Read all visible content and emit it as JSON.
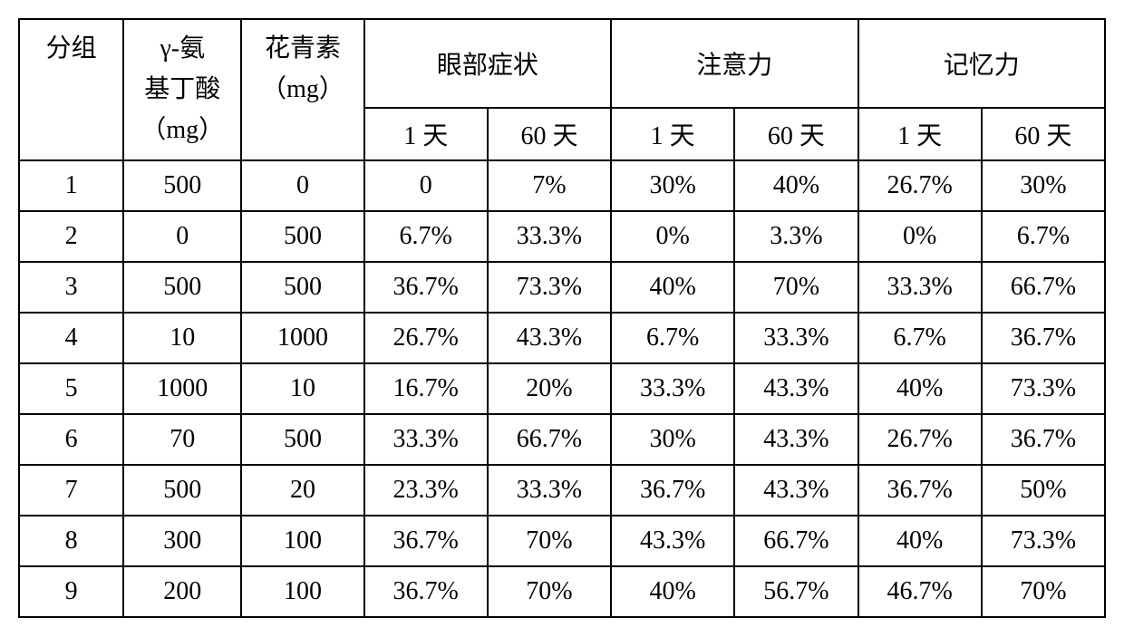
{
  "table": {
    "type": "table",
    "background_color": "#ffffff",
    "border_color": "#000000",
    "text_color": "#000000",
    "font_size": 28,
    "font_family": "SimSun",
    "headers": {
      "group": "分组",
      "gaba_line1": "γ-氨",
      "gaba_line2": "基丁酸",
      "gaba_line3": "（mg）",
      "anthocyanin_line1": "花青素",
      "anthocyanin_line2": "（mg）",
      "eye_symptoms": "眼部症状",
      "attention": "注意力",
      "memory": "记忆力",
      "day1": "1 天",
      "day60": "60 天"
    },
    "columns": [
      "分组",
      "γ-氨基丁酸（mg）",
      "花青素（mg）",
      "眼部症状 1天",
      "眼部症状 60天",
      "注意力 1天",
      "注意力 60天",
      "记忆力 1天",
      "记忆力 60天"
    ],
    "rows": [
      {
        "group": "1",
        "gaba": "500",
        "anth": "0",
        "eye_d1": "0",
        "eye_d60": "7%",
        "att_d1": "30%",
        "att_d60": "40%",
        "mem_d1": "26.7%",
        "mem_d60": "30%"
      },
      {
        "group": "2",
        "gaba": "0",
        "anth": "500",
        "eye_d1": "6.7%",
        "eye_d60": "33.3%",
        "att_d1": "0%",
        "att_d60": "3.3%",
        "mem_d1": "0%",
        "mem_d60": "6.7%"
      },
      {
        "group": "3",
        "gaba": "500",
        "anth": "500",
        "eye_d1": "36.7%",
        "eye_d60": "73.3%",
        "att_d1": "40%",
        "att_d60": "70%",
        "mem_d1": "33.3%",
        "mem_d60": "66.7%"
      },
      {
        "group": "4",
        "gaba": "10",
        "anth": "1000",
        "eye_d1": "26.7%",
        "eye_d60": "43.3%",
        "att_d1": "6.7%",
        "att_d60": "33.3%",
        "mem_d1": "6.7%",
        "mem_d60": "36.7%"
      },
      {
        "group": "5",
        "gaba": "1000",
        "anth": "10",
        "eye_d1": "16.7%",
        "eye_d60": "20%",
        "att_d1": "33.3%",
        "att_d60": "43.3%",
        "mem_d1": "40%",
        "mem_d60": "73.3%"
      },
      {
        "group": "6",
        "gaba": "70",
        "anth": "500",
        "eye_d1": "33.3%",
        "eye_d60": "66.7%",
        "att_d1": "30%",
        "att_d60": "43.3%",
        "mem_d1": "26.7%",
        "mem_d60": "36.7%"
      },
      {
        "group": "7",
        "gaba": "500",
        "anth": "20",
        "eye_d1": "23.3%",
        "eye_d60": "33.3%",
        "att_d1": "36.7%",
        "att_d60": "43.3%",
        "mem_d1": "36.7%",
        "mem_d60": "50%"
      },
      {
        "group": "8",
        "gaba": "300",
        "anth": "100",
        "eye_d1": "36.7%",
        "eye_d60": "70%",
        "att_d1": "43.3%",
        "att_d60": "66.7%",
        "mem_d1": "40%",
        "mem_d60": "73.3%"
      },
      {
        "group": "9",
        "gaba": "200",
        "anth": "100",
        "eye_d1": "36.7%",
        "eye_d60": "70%",
        "att_d1": "40%",
        "att_d60": "56.7%",
        "mem_d1": "46.7%",
        "mem_d60": "70%"
      }
    ]
  }
}
